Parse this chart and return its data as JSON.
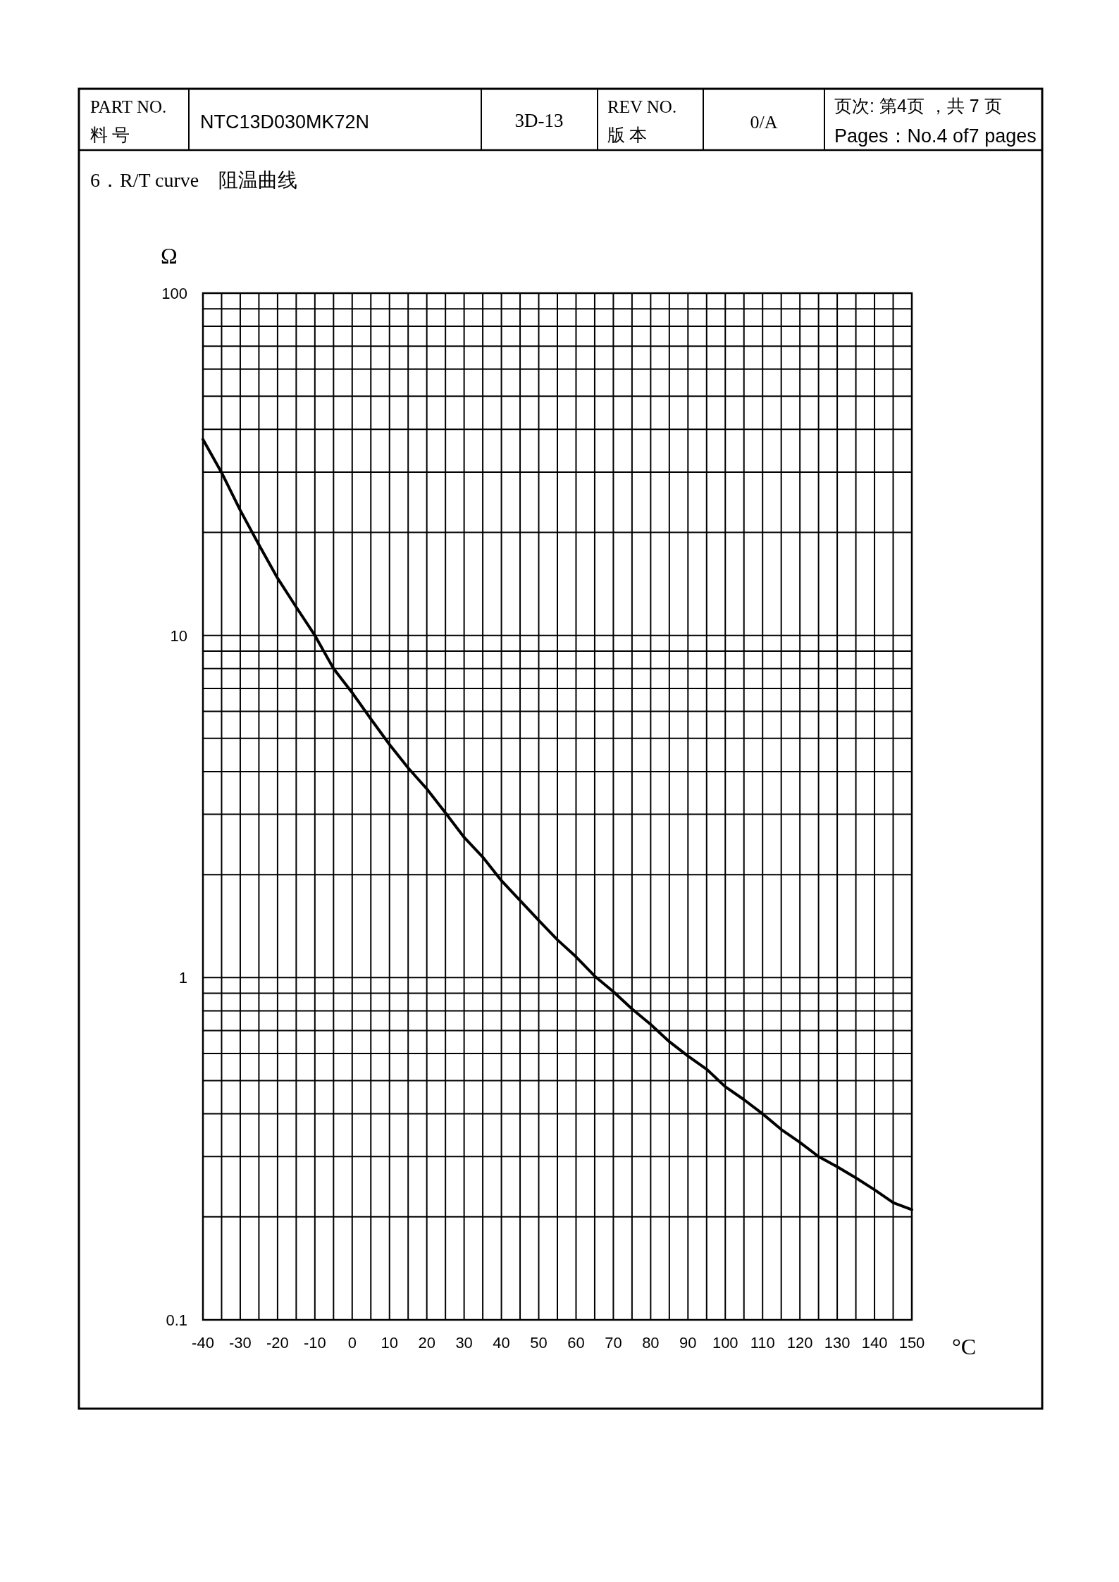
{
  "chart_data": {
    "type": "line",
    "title": "6．R/T curve　阻温曲线",
    "xlabel": "°C",
    "ylabel": "Ω",
    "annotations": [
      "PART NO.",
      "料 号",
      "NTC13D030MK72N",
      "3D-13",
      "REV NO.",
      "版 本",
      "0/A",
      "页次: 第4页 ，共 7 页",
      "Pages：No.4 of7 pages"
    ],
    "x": [
      -40,
      -35,
      -30,
      -25,
      -20,
      -15,
      -10,
      -5,
      0,
      5,
      10,
      15,
      20,
      25,
      30,
      35,
      40,
      45,
      50,
      55,
      60,
      65,
      70,
      75,
      80,
      85,
      90,
      95,
      100,
      105,
      110,
      115,
      120,
      125,
      130,
      135,
      140,
      145,
      150
    ],
    "series": [
      {
        "color": "#000000",
        "values": [
          37.4,
          29.9,
          23.2,
          18.4,
          14.7,
          12.1,
          10,
          8.0,
          6.8,
          5.7,
          4.8,
          4.1,
          3.56,
          3.03,
          2.57,
          2.25,
          1.92,
          1.68,
          1.47,
          1.29,
          1.15,
          1.01,
          0.91,
          0.81,
          0.73,
          0.65,
          0.59,
          0.54,
          0.48,
          0.44,
          0.4,
          0.36,
          0.33,
          0.3,
          0.28,
          0.26,
          0.24,
          0.22,
          0.21
        ]
      }
    ],
    "log": "y",
    "xlim": [
      -40,
      150
    ],
    "xticks": [
      -40,
      {
        "value": -35,
        "label": null
      },
      -30,
      {
        "value": -25,
        "label": null
      },
      -20,
      {
        "value": -15,
        "label": null
      },
      -10,
      {
        "value": -5,
        "label": null
      },
      0,
      {
        "value": 5,
        "label": null
      },
      10,
      {
        "value": 15,
        "label": null
      },
      20,
      {
        "value": 25,
        "label": null
      },
      30,
      {
        "value": 35,
        "label": null
      },
      40,
      {
        "value": 45,
        "label": null
      },
      50,
      {
        "value": 55,
        "label": null
      },
      60,
      {
        "value": 65,
        "label": null
      },
      70,
      {
        "value": 75,
        "label": null
      },
      80,
      {
        "value": 85,
        "label": null
      },
      90,
      {
        "value": 95,
        "label": null
      },
      100,
      {
        "value": 105,
        "label": null
      },
      110,
      {
        "value": 115,
        "label": null
      },
      120,
      {
        "value": 125,
        "label": null
      },
      130,
      {
        "value": 135,
        "label": null
      },
      140,
      {
        "value": 145,
        "label": null
      },
      150
    ],
    "ylim": [
      0.1,
      100
    ],
    "yticks": [
      0.1,
      {
        "value": 0.2,
        "label": null
      },
      {
        "value": 0.3,
        "label": null
      },
      {
        "value": 0.4,
        "label": null
      },
      {
        "value": 0.5,
        "label": null
      },
      {
        "value": 0.6,
        "label": null
      },
      {
        "value": 0.7,
        "label": null
      },
      {
        "value": 0.8,
        "label": null
      },
      {
        "value": 0.9,
        "label": null
      },
      1,
      {
        "value": 2,
        "label": null
      },
      {
        "value": 3,
        "label": null
      },
      {
        "value": 4,
        "label": null
      },
      {
        "value": 5,
        "label": null
      },
      {
        "value": 6,
        "label": null
      },
      {
        "value": 7,
        "label": null
      },
      {
        "value": 8,
        "label": null
      },
      {
        "value": 9,
        "label": null
      },
      10,
      {
        "value": 20,
        "label": null
      },
      {
        "value": 30,
        "label": null
      },
      {
        "value": 40,
        "label": null
      },
      {
        "value": 50,
        "label": null
      },
      {
        "value": 60,
        "label": null
      },
      {
        "value": 70,
        "label": null
      },
      {
        "value": 80,
        "label": null
      },
      {
        "value": 90,
        "label": null
      },
      100
    ],
    "grid": true
  }
}
